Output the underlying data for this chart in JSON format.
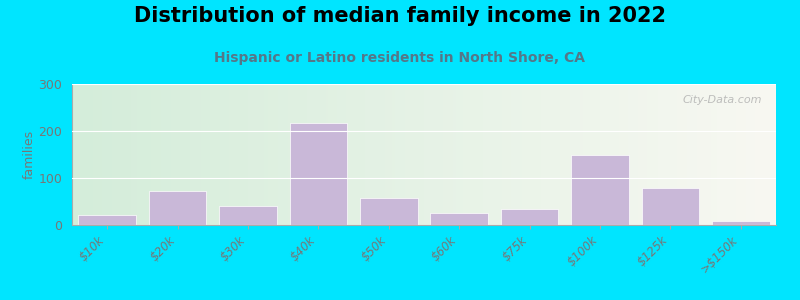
{
  "title": "Distribution of median family income in 2022",
  "subtitle": "Hispanic or Latino residents in North Shore, CA",
  "categories": [
    "$10k",
    "$20k",
    "$30k",
    "$40k",
    "$50k",
    "$60k",
    "$75k",
    "$100k",
    "$125k",
    ">$150k"
  ],
  "values": [
    22,
    72,
    40,
    218,
    58,
    25,
    35,
    150,
    78,
    8
  ],
  "bar_color": "#c9b8d8",
  "background_outer": "#00e5ff",
  "background_inner_left": "#d4edda",
  "background_inner_right": "#f8f8f2",
  "ylabel": "families",
  "ylim": [
    0,
    300
  ],
  "yticks": [
    0,
    100,
    200,
    300
  ],
  "watermark": "City-Data.com",
  "title_fontsize": 15,
  "subtitle_fontsize": 10,
  "subtitle_color": "#557788",
  "tick_color": "#777777",
  "grid_color": "#dddddd"
}
